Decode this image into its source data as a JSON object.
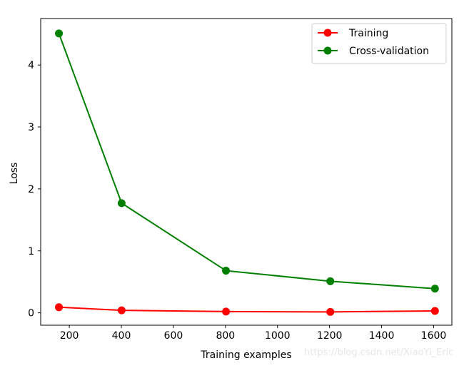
{
  "chart_data": {
    "type": "line",
    "title": "",
    "xlabel": "Training examples",
    "ylabel": "Loss",
    "xlim": [
      90,
      1670
    ],
    "ylim": [
      -0.2,
      4.75
    ],
    "xticks": [
      200,
      400,
      600,
      800,
      1000,
      1200,
      1400,
      1600
    ],
    "yticks": [
      0,
      1,
      2,
      3,
      4
    ],
    "grid": false,
    "legend_position": "top-right",
    "x": [
      160,
      401,
      802,
      1203,
      1605
    ],
    "series": [
      {
        "name": "Training",
        "color": "#ff0000",
        "marker": "circle",
        "values": [
          0.09,
          0.04,
          0.02,
          0.015,
          0.03
        ]
      },
      {
        "name": "Cross-validation",
        "color": "#008000",
        "marker": "circle",
        "values": [
          4.51,
          1.77,
          0.68,
          0.51,
          0.39
        ]
      }
    ]
  },
  "watermark": "https://blog.csdn.net/XiaoYi_Eric"
}
